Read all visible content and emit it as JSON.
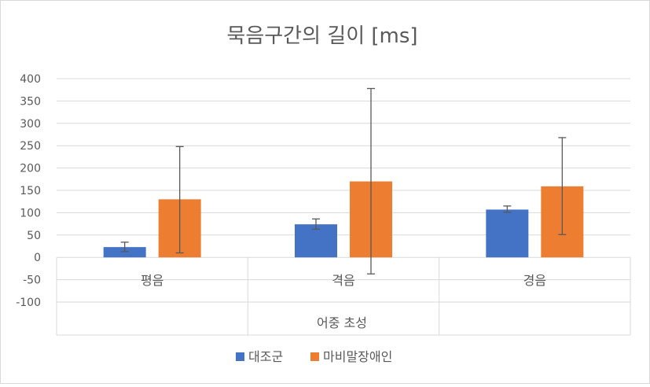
{
  "chart_data": {
    "type": "bar",
    "title": "묵음구간의 길이 [ms]",
    "xlabel": "어중 초성",
    "ylabel": "",
    "categories": [
      "평음",
      "격음",
      "경음"
    ],
    "ylim": [
      -100,
      400
    ],
    "yticks": [
      400,
      350,
      300,
      250,
      200,
      150,
      100,
      50,
      0,
      -50,
      -100
    ],
    "grid": true,
    "legend_position": "bottom",
    "series": [
      {
        "name": "대조군",
        "color": "#4472C4",
        "values": [
          23,
          74,
          107
        ],
        "error_low": [
          13,
          63,
          101
        ],
        "error_high": [
          34,
          86,
          115
        ]
      },
      {
        "name": "마비말장애인",
        "color": "#ED7D31",
        "values": [
          130,
          170,
          159
        ],
        "error_low": [
          10,
          -37,
          51
        ],
        "error_high": [
          248,
          378,
          268
        ]
      }
    ]
  }
}
